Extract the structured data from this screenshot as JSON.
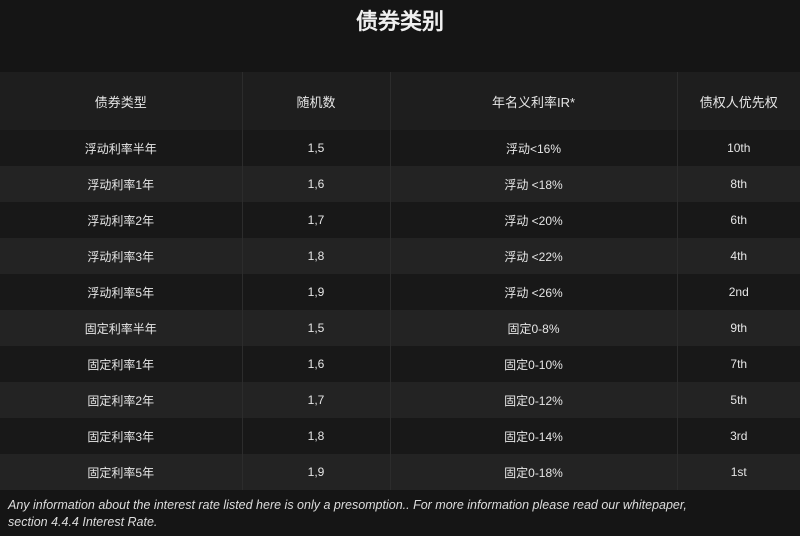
{
  "title": "债券类别",
  "table": {
    "headers": [
      "债券类型",
      "随机数",
      "年名义利率IR*",
      "债权人优先权"
    ],
    "rows": [
      [
        "浮动利率半年",
        "1,5",
        "浮动<16%",
        "10th"
      ],
      [
        "浮动利率1年",
        "1,6",
        "浮动 <18%",
        "8th"
      ],
      [
        "浮动利率2年",
        "1,7",
        "浮动 <20%",
        "6th"
      ],
      [
        "浮动利率3年",
        "1,8",
        "浮动 <22%",
        "4th"
      ],
      [
        "浮动利率5年",
        "1,9",
        "浮动 <26%",
        "2nd"
      ],
      [
        "固定利率半年",
        "1,5",
        "固定0-8%",
        "9th"
      ],
      [
        "固定利率1年",
        "1,6",
        "固定0-10%",
        "7th"
      ],
      [
        "固定利率2年",
        "1,7",
        "固定0-12%",
        "5th"
      ],
      [
        "固定利率3年",
        "1,8",
        "固定0-14%",
        "3rd"
      ],
      [
        "固定利率5年",
        "1,9",
        "固定0-18%",
        "1st"
      ]
    ]
  },
  "footnote": "Any information about the interest rate listed here is only a presomption.. For more information please read our whitepaper, section 4.4.4 Interest Rate."
}
